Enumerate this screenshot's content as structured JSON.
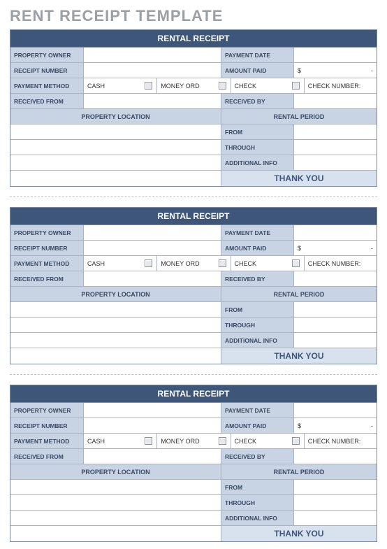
{
  "page_title": "RENT RECEIPT TEMPLATE",
  "colors": {
    "header_bg": "#3d567a",
    "label_bg": "#c8d3e4",
    "thanks_bg": "#d8e2ef",
    "border": "#a9b3c2",
    "title_color": "#9aa0a6"
  },
  "receipt": {
    "header": "RENTAL RECEIPT",
    "labels": {
      "property_owner": "PROPERTY OWNER",
      "payment_date": "PAYMENT DATE",
      "receipt_number": "RECEIPT NUMBER",
      "amount_paid": "AMOUNT PAID",
      "payment_method": "PAYMENT METHOD",
      "check_number": "CHECK NUMBER:",
      "received_from": "RECEIVED FROM",
      "received_by": "RECEIVED BY",
      "property_location": "PROPERTY LOCATION",
      "rental_period": "RENTAL PERIOD",
      "from": "FROM",
      "through": "THROUGH",
      "additional_info": "ADDITIONAL INFO"
    },
    "payment_methods": {
      "cash": "CASH",
      "money_order": "MONEY ORD",
      "check": "CHECK"
    },
    "amount": {
      "currency": "$",
      "value": "-"
    },
    "thank_you": "THANK YOU"
  },
  "receipt_count": 3
}
